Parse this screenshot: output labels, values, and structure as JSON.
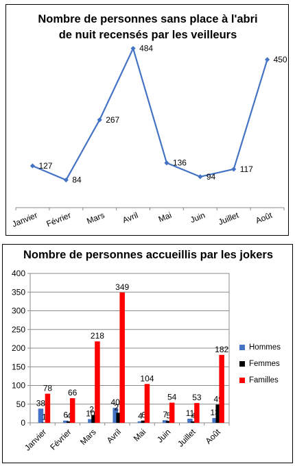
{
  "chart_data": [
    {
      "type": "line",
      "title": "Nombre de personnes sans place à l'abri de nuit recensés par les veilleurs",
      "title_lines": [
        "Nombre de personnes sans place à l'abri",
        "de nuit recensés par les veilleurs"
      ],
      "categories": [
        "Janvier",
        "Février",
        "Mars",
        "Avril",
        "Mai",
        "Juin",
        "Juillet",
        "Août"
      ],
      "values": [
        127,
        84,
        267,
        484,
        136,
        94,
        117,
        450
      ],
      "ylim": [
        0,
        550
      ],
      "grid": false,
      "color": "#4472C4"
    },
    {
      "type": "bar",
      "title": "Nombre de personnes accueillis par les jokers",
      "categories": [
        "Janvier",
        "Février",
        "Mars",
        "Avril",
        "Mai",
        "Juin",
        "Juillet",
        "Août"
      ],
      "series": [
        {
          "name": "Hommes",
          "values": [
            38,
            6,
            10,
            40,
            4,
            7,
            11,
            13
          ],
          "color": "#4472C4"
        },
        {
          "name": "Femmes",
          "values": [
            1,
            4,
            21,
            27,
            6,
            5,
            4,
            49
          ],
          "color": "#000000"
        },
        {
          "name": "Familles",
          "values": [
            78,
            66,
            218,
            349,
            104,
            54,
            53,
            182
          ],
          "color": "#FF0000"
        }
      ],
      "ylim": [
        0,
        400
      ],
      "yticks": [
        0,
        50,
        100,
        150,
        200,
        250,
        300,
        350,
        400
      ],
      "grid": true,
      "legend_position": "right"
    }
  ]
}
